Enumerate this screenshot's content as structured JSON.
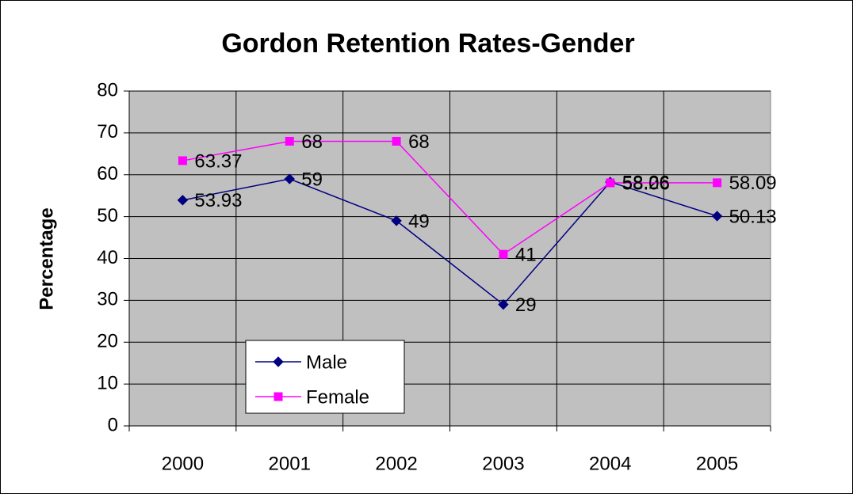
{
  "chart_data": {
    "type": "line",
    "title": "Gordon Retention Rates-Gender",
    "y_label": "Percentage",
    "categories": [
      "2000",
      "2001",
      "2002",
      "2003",
      "2004",
      "2005"
    ],
    "series": [
      {
        "name": "Male",
        "color": "#000080",
        "marker": "diamond",
        "values": [
          53.93,
          59,
          49,
          29,
          58.26,
          50.13
        ]
      },
      {
        "name": "Female",
        "color": "#ff00ff",
        "marker": "square",
        "values": [
          63.37,
          68,
          68,
          41,
          58.06,
          58.09
        ]
      }
    ],
    "ylim": [
      0,
      80
    ],
    "yticks": [
      0,
      10,
      20,
      30,
      40,
      50,
      60,
      70,
      80
    ],
    "grid": true,
    "legend": "lower-left"
  }
}
